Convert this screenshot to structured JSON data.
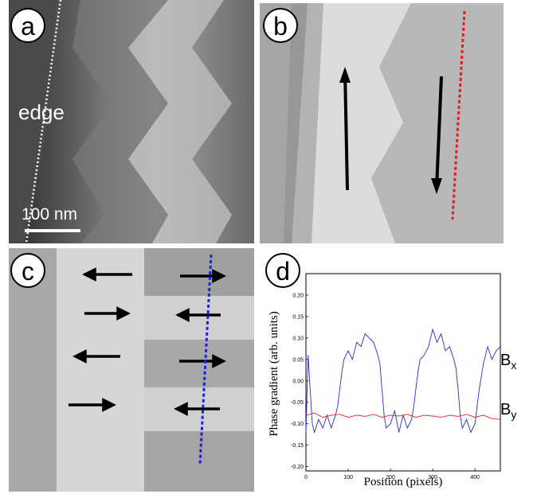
{
  "panels": {
    "a": {
      "label": "a",
      "edge_text": "edge",
      "scalebar_text": "100 nm"
    },
    "b": {
      "label": "b"
    },
    "c": {
      "label": "c"
    },
    "d": {
      "label": "d"
    }
  },
  "chart_data": {
    "type": "line",
    "xlabel": "Position (pixels)",
    "ylabel": "Phase gradient (arb. units)",
    "xlim": [
      0,
      460
    ],
    "ylim": [
      -0.21,
      0.25
    ],
    "xticks": [
      0,
      100,
      200,
      300,
      400
    ],
    "yticks": [
      0.2,
      0.15,
      0.1,
      0.05,
      0.0,
      -0.05,
      -0.1,
      -0.15,
      -0.2
    ],
    "ytick_labels": [
      "0.20",
      "0.15",
      "0.10",
      "0.05",
      "0.00",
      "-0.05",
      "-0.10",
      "-0.15",
      "-0.20"
    ],
    "series": [
      {
        "name": "Bx",
        "name_base": "B",
        "name_sub": "x",
        "color": "#2b2bd0",
        "x": [
          0,
          5,
          10,
          15,
          20,
          30,
          40,
          50,
          60,
          70,
          75,
          80,
          85,
          90,
          95,
          100,
          110,
          120,
          130,
          140,
          150,
          160,
          170,
          175,
          180,
          185,
          190,
          200,
          210,
          220,
          230,
          240,
          250,
          255,
          260,
          265,
          270,
          280,
          290,
          300,
          310,
          320,
          330,
          340,
          350,
          355,
          360,
          365,
          370,
          380,
          390,
          400,
          405,
          410,
          420,
          430,
          440,
          450,
          460
        ],
        "y": [
          -0.12,
          0.06,
          -0.02,
          -0.1,
          -0.12,
          -0.09,
          -0.11,
          -0.08,
          -0.11,
          -0.08,
          -0.06,
          -0.02,
          0.02,
          0.05,
          0.06,
          0.07,
          0.05,
          0.09,
          0.08,
          0.11,
          0.1,
          0.09,
          0.06,
          0.04,
          -0.02,
          -0.08,
          -0.11,
          -0.1,
          -0.07,
          -0.12,
          -0.08,
          -0.11,
          -0.09,
          -0.06,
          -0.02,
          0.02,
          0.05,
          0.06,
          0.08,
          0.12,
          0.09,
          0.11,
          0.07,
          0.08,
          0.05,
          0.03,
          -0.02,
          -0.08,
          -0.11,
          -0.09,
          -0.12,
          -0.1,
          -0.06,
          -0.02,
          0.04,
          0.08,
          0.05,
          0.07,
          0.08
        ]
      },
      {
        "name": "By",
        "name_base": "B",
        "name_sub": "y",
        "color": "#d03030",
        "x": [
          0,
          20,
          40,
          60,
          80,
          100,
          120,
          140,
          160,
          180,
          200,
          220,
          240,
          260,
          280,
          300,
          320,
          340,
          360,
          380,
          400,
          420,
          440,
          460
        ],
        "y": [
          -0.08,
          -0.075,
          -0.085,
          -0.08,
          -0.078,
          -0.085,
          -0.08,
          -0.083,
          -0.078,
          -0.085,
          -0.08,
          -0.082,
          -0.078,
          -0.085,
          -0.08,
          -0.082,
          -0.085,
          -0.08,
          -0.083,
          -0.078,
          -0.085,
          -0.08,
          -0.088,
          -0.09
        ]
      }
    ]
  }
}
